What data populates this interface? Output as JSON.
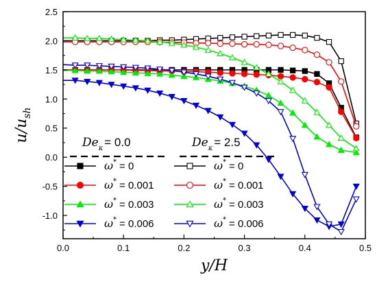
{
  "chart_data": {
    "type": "line",
    "xlabel": "y/H",
    "ylabel": "u/u_sh",
    "ylabel_main": "u/u",
    "ylabel_sub": "sh",
    "xlim": [
      0.0,
      0.5
    ],
    "ylim": [
      -1.4,
      2.5
    ],
    "x_ticks": [
      0.0,
      0.1,
      0.2,
      0.3,
      0.4,
      0.5
    ],
    "x_tick_labels": [
      "0.0",
      "0.1",
      "0.2",
      "0.3",
      "0.4",
      "0.5"
    ],
    "y_ticks": [
      2.5,
      2.0,
      1.5,
      1.0,
      0.5,
      0.0,
      -0.5,
      -1.0
    ],
    "y_tick_labels": [
      "2.5",
      "2.0",
      "1.5",
      "1.0",
      "0.5",
      "0.0",
      "-0.5",
      "-1.0"
    ],
    "grid": false,
    "legend": {
      "placement": "bottom-left",
      "groups": [
        {
          "head_main": "De",
          "head_sub": "κ",
          "head_value": "= 0.0"
        },
        {
          "head_main": "De",
          "head_sub": "κ",
          "head_value": "= 2.5"
        }
      ],
      "entries": [
        {
          "symbol": "ω",
          "sup": "*",
          "value": "= 0"
        },
        {
          "symbol": "ω",
          "sup": "*",
          "value": "= 0.001"
        },
        {
          "symbol": "ω",
          "sup": "*",
          "value": "= 0.003"
        },
        {
          "symbol": "ω",
          "sup": "*",
          "value": "= 0.006"
        }
      ]
    },
    "series": [
      {
        "color": "#000000",
        "marker": "square",
        "filled": true,
        "x": [
          0.0,
          0.02,
          0.04,
          0.06,
          0.08,
          0.1,
          0.12,
          0.14,
          0.16,
          0.18,
          0.2,
          0.22,
          0.24,
          0.26,
          0.28,
          0.3,
          0.32,
          0.34,
          0.36,
          0.38,
          0.4,
          0.42,
          0.44,
          0.46,
          0.485
        ],
        "y": [
          1.5,
          1.5,
          1.5,
          1.5,
          1.5,
          1.5,
          1.5,
          1.5,
          1.5,
          1.5,
          1.5,
          1.5,
          1.5,
          1.5,
          1.5,
          1.5,
          1.5,
          1.5,
          1.5,
          1.49,
          1.48,
          1.43,
          1.27,
          0.85,
          0.34
        ]
      },
      {
        "color": "#ff0000",
        "marker": "circle",
        "filled": true,
        "x": [
          0.0,
          0.02,
          0.04,
          0.06,
          0.08,
          0.1,
          0.12,
          0.14,
          0.16,
          0.18,
          0.2,
          0.22,
          0.24,
          0.26,
          0.28,
          0.3,
          0.32,
          0.34,
          0.36,
          0.38,
          0.4,
          0.42,
          0.44,
          0.46,
          0.485
        ],
        "y": [
          1.5,
          1.5,
          1.5,
          1.5,
          1.5,
          1.5,
          1.49,
          1.49,
          1.48,
          1.48,
          1.47,
          1.47,
          1.46,
          1.45,
          1.44,
          1.43,
          1.42,
          1.41,
          1.39,
          1.37,
          1.34,
          1.29,
          1.2,
          0.78,
          0.33
        ]
      },
      {
        "color": "#00ee00",
        "marker": "triangle-up",
        "filled": true,
        "x": [
          0.0,
          0.02,
          0.04,
          0.06,
          0.08,
          0.1,
          0.12,
          0.14,
          0.16,
          0.18,
          0.2,
          0.22,
          0.24,
          0.26,
          0.28,
          0.3,
          0.32,
          0.34,
          0.36,
          0.38,
          0.4,
          0.42,
          0.44,
          0.46,
          0.485
        ],
        "y": [
          1.49,
          1.49,
          1.48,
          1.48,
          1.47,
          1.46,
          1.45,
          1.44,
          1.43,
          1.41,
          1.39,
          1.37,
          1.34,
          1.31,
          1.27,
          1.22,
          1.15,
          1.06,
          0.93,
          0.76,
          0.55,
          0.35,
          0.22,
          0.12,
          0.08
        ]
      },
      {
        "color": "#0000dd",
        "marker": "triangle-down",
        "filled": true,
        "x": [
          0.0,
          0.02,
          0.04,
          0.06,
          0.08,
          0.1,
          0.12,
          0.14,
          0.16,
          0.18,
          0.2,
          0.22,
          0.24,
          0.26,
          0.28,
          0.3,
          0.32,
          0.34,
          0.36,
          0.38,
          0.4,
          0.42,
          0.44,
          0.46,
          0.485
        ],
        "y": [
          1.32,
          1.32,
          1.3,
          1.28,
          1.25,
          1.22,
          1.19,
          1.15,
          1.1,
          1.04,
          0.97,
          0.89,
          0.8,
          0.69,
          0.56,
          0.41,
          0.21,
          -0.04,
          -0.33,
          -0.63,
          -0.88,
          -1.08,
          -1.19,
          -1.15,
          -0.5
        ]
      },
      {
        "color": "#000000",
        "marker": "square",
        "filled": false,
        "x": [
          0.0,
          0.02,
          0.04,
          0.06,
          0.08,
          0.1,
          0.12,
          0.14,
          0.16,
          0.18,
          0.2,
          0.22,
          0.24,
          0.26,
          0.28,
          0.3,
          0.32,
          0.34,
          0.36,
          0.38,
          0.4,
          0.42,
          0.44,
          0.46,
          0.485
        ],
        "y": [
          2.0,
          2.0,
          2.0,
          2.0,
          2.0,
          2.0,
          2.0,
          2.0,
          2.01,
          2.01,
          2.02,
          2.03,
          2.04,
          2.05,
          2.06,
          2.07,
          2.08,
          2.09,
          2.1,
          2.1,
          2.09,
          2.05,
          1.98,
          1.65,
          0.58
        ]
      },
      {
        "color": "#ff0000",
        "marker": "circle",
        "filled": false,
        "x": [
          0.0,
          0.02,
          0.04,
          0.06,
          0.08,
          0.1,
          0.12,
          0.14,
          0.16,
          0.18,
          0.2,
          0.22,
          0.24,
          0.26,
          0.28,
          0.3,
          0.32,
          0.34,
          0.36,
          0.38,
          0.4,
          0.42,
          0.44,
          0.46,
          0.485
        ],
        "y": [
          1.98,
          1.98,
          1.98,
          1.98,
          1.98,
          1.98,
          1.98,
          1.98,
          1.98,
          1.97,
          1.97,
          1.96,
          1.96,
          1.95,
          1.95,
          1.94,
          1.94,
          1.93,
          1.91,
          1.88,
          1.84,
          1.76,
          1.63,
          1.3,
          0.53
        ]
      },
      {
        "color": "#00ee00",
        "marker": "triangle-up",
        "filled": false,
        "x": [
          0.0,
          0.02,
          0.04,
          0.06,
          0.08,
          0.1,
          0.12,
          0.14,
          0.16,
          0.18,
          0.2,
          0.22,
          0.24,
          0.26,
          0.28,
          0.3,
          0.32,
          0.34,
          0.36,
          0.38,
          0.4,
          0.42,
          0.44,
          0.46,
          0.485
        ],
        "y": [
          2.05,
          2.05,
          2.04,
          2.04,
          2.03,
          2.02,
          2.01,
          2.0,
          1.98,
          1.96,
          1.93,
          1.89,
          1.84,
          1.78,
          1.71,
          1.63,
          1.54,
          1.43,
          1.3,
          1.15,
          0.97,
          0.77,
          0.55,
          0.33,
          0.15
        ]
      },
      {
        "color": "#0000dd",
        "marker": "triangle-down",
        "filled": false,
        "x": [
          0.0,
          0.02,
          0.04,
          0.06,
          0.08,
          0.1,
          0.12,
          0.14,
          0.16,
          0.18,
          0.2,
          0.22,
          0.24,
          0.26,
          0.28,
          0.3,
          0.32,
          0.34,
          0.36,
          0.38,
          0.4,
          0.42,
          0.44,
          0.46,
          0.485
        ],
        "y": [
          1.59,
          1.58,
          1.58,
          1.57,
          1.56,
          1.55,
          1.54,
          1.53,
          1.51,
          1.49,
          1.46,
          1.43,
          1.39,
          1.34,
          1.28,
          1.2,
          1.1,
          0.97,
          0.78,
          0.32,
          -0.3,
          -0.85,
          -1.15,
          -1.28,
          -0.72
        ]
      }
    ]
  }
}
